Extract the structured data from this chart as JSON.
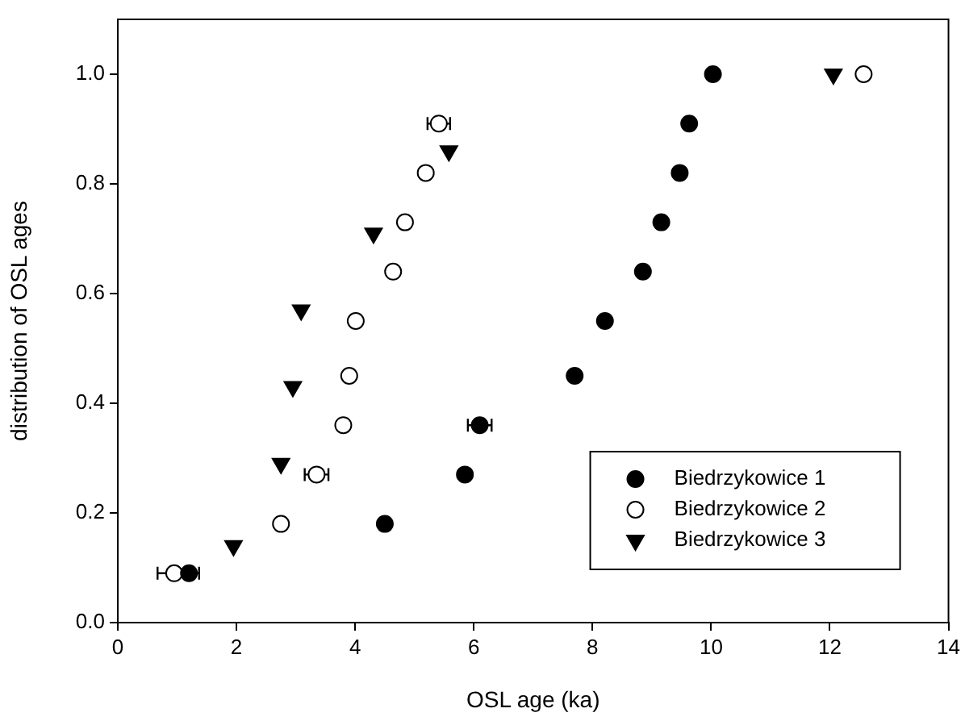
{
  "chart_data": {
    "type": "scatter",
    "xlabel": "OSL age (ka)",
    "ylabel": "distribution of OSL ages",
    "xlim": [
      0,
      14
    ],
    "xticks": [
      0,
      2,
      4,
      6,
      8,
      10,
      12,
      14
    ],
    "ylim": [
      0,
      1.1
    ],
    "yticks": [
      {
        "value": 0,
        "label": "0.0"
      },
      {
        "value": 0.2,
        "label": "0.2"
      },
      {
        "value": 0.4,
        "label": "0.4"
      },
      {
        "value": 0.6,
        "label": "0.6"
      },
      {
        "value": 0.8,
        "label": "0.8"
      },
      {
        "value": 1,
        "label": "1.0"
      }
    ],
    "grid": false,
    "legend": "bottom right",
    "series": [
      {
        "name": "Biedrzykowice 1",
        "color": "#000000",
        "marker": "circle",
        "x": [
          1.2,
          4.5,
          5.85,
          6.1,
          7.7,
          8.21,
          8.85,
          9.16,
          9.47,
          9.63,
          10.03
        ],
        "values": [
          0.09,
          0.18,
          0.27,
          0.36,
          0.45,
          0.55,
          0.64,
          0.73,
          0.82,
          0.91,
          1.0
        ],
        "xerrors": [
          0.17,
          null,
          null,
          0.2,
          null,
          null,
          null,
          null,
          null,
          null,
          null
        ]
      },
      {
        "name": "Biedrzykowice 2",
        "color": "#ffffff",
        "marker": "circle",
        "x": [
          0.95,
          2.75,
          3.35,
          3.8,
          3.9,
          4.01,
          4.64,
          4.84,
          5.19,
          5.41,
          12.57
        ],
        "values": [
          0.09,
          0.18,
          0.27,
          0.36,
          0.45,
          0.55,
          0.64,
          0.73,
          0.82,
          0.91,
          1.0
        ],
        "xerrors": [
          0.28,
          null,
          0.2,
          null,
          null,
          null,
          null,
          null,
          null,
          0.19,
          null
        ]
      },
      {
        "name": "Biedrzykowice 3",
        "color": "#000000",
        "marker": "triangle",
        "x": [
          1.95,
          2.75,
          2.95,
          3.09,
          4.31,
          5.58,
          12.06
        ],
        "values": [
          0.14,
          0.29,
          0.43,
          0.57,
          0.71,
          0.86,
          1.0
        ]
      }
    ]
  }
}
